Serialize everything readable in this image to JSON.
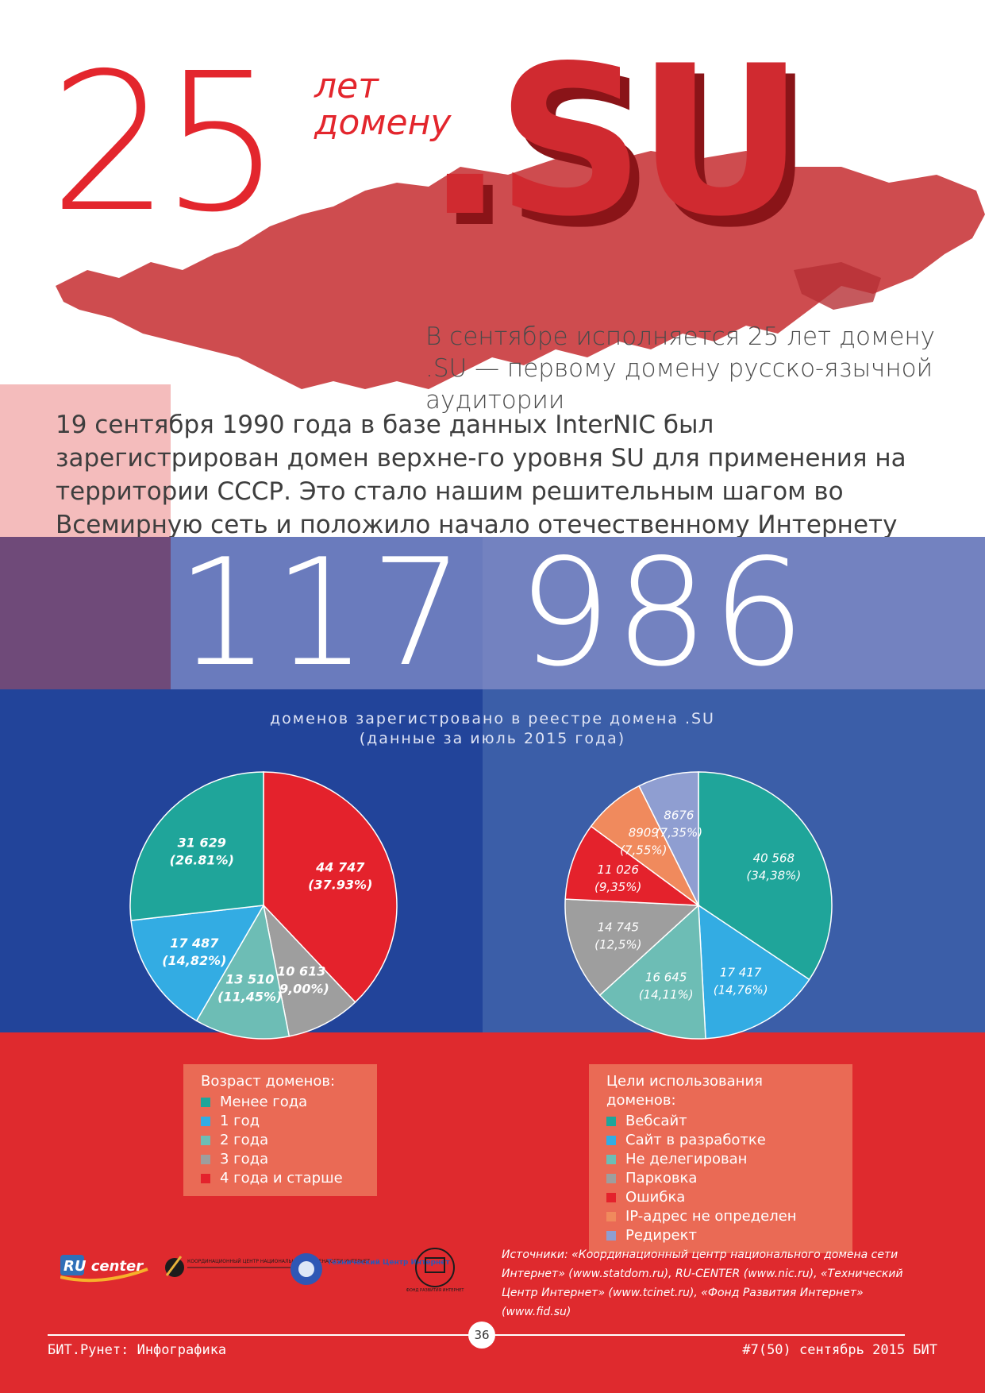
{
  "header": {
    "number": "25",
    "years_line1": "лет",
    "years_line2": "домену",
    "su_text": ".SU",
    "intro": "В сентябре исполняется 25 лет домену .SU — первому домену русско-язычной аудитории"
  },
  "paragraph": "19 сентября 1990 года в базе данных InterNIC был зарегистрирован домен верхне-го уровня SU для применения на территории СССР. Это стало нашим решительным шагом во Всемирную сеть и положило начало отечественному Интернету",
  "stat": {
    "number": "117 986",
    "caption_line1": "доменов зарегистровано в реестре домена .SU",
    "caption_line2": "(данные за июль 2015 года)"
  },
  "colors": {
    "red": "#e3262d",
    "teal": "#1fa59a",
    "light_blue": "#33ace3",
    "mint": "#6dbdb5",
    "gray": "#9e9e9e",
    "crimson": "#e4222c",
    "orange": "#f08a5d",
    "lavender": "#8f9ed1"
  },
  "chart_data": [
    {
      "type": "pie",
      "title": "Возраст доменов:",
      "slices": [
        {
          "name": "Менее года",
          "value": 31629,
          "label": "31 629",
          "pct": "(26.81%)",
          "color": "#1fa59a"
        },
        {
          "name": "1 год",
          "value": 17487,
          "label": "17 487",
          "pct": "(14,82%)",
          "color": "#33ace3"
        },
        {
          "name": "2 года",
          "value": 13510,
          "label": "13 510",
          "pct": "(11,45%)",
          "color": "#6dbdb5"
        },
        {
          "name": "3 года",
          "value": 10613,
          "label": "10 613",
          "pct": "(9,00%)",
          "color": "#9e9e9e"
        },
        {
          "name": "4 года и старше",
          "value": 44747,
          "label": "44 747",
          "pct": "(37.93%)",
          "color": "#e4222c"
        }
      ]
    },
    {
      "type": "pie",
      "title": "Цели использования доменов:",
      "slices": [
        {
          "name": "Вебсайт",
          "value": 40568,
          "label": "40 568",
          "pct": "(34,38%)",
          "color": "#1fa59a"
        },
        {
          "name": "Сайт в разработке",
          "value": 17417,
          "label": "17 417",
          "pct": "(14,76%)",
          "color": "#33ace3"
        },
        {
          "name": "Не делегирован",
          "value": 16645,
          "label": "16 645",
          "pct": "(14,11%)",
          "color": "#6dbdb5"
        },
        {
          "name": "Парковка",
          "value": 14745,
          "label": "14 745",
          "pct": "(12,5%)",
          "color": "#9e9e9e"
        },
        {
          "name": "Ошибка",
          "value": 11026,
          "label": "11 026",
          "pct": "(9,35%)",
          "color": "#e4222c"
        },
        {
          "name": "IP-адрес не определен",
          "value": 8909,
          "label": "8909",
          "pct": "(7,55%)",
          "color": "#f08a5d"
        },
        {
          "name": "Редирект",
          "value": 8676,
          "label": "8676",
          "pct": "(7,35%)",
          "color": "#8f9ed1"
        }
      ]
    }
  ],
  "legend1": {
    "title": "Возраст доменов:",
    "items": [
      "Менее года",
      "1 год",
      "2 года",
      "3 года",
      "4 года и старше"
    ]
  },
  "legend2": {
    "title": "Цели использования доменов:",
    "items": [
      "Вебсайт",
      "Сайт в разработке",
      "Не делегирован",
      "Парковка",
      "Ошибка",
      "IP-адрес не определен",
      "Редирект"
    ]
  },
  "logos": {
    "ru_center": "RU center",
    "coord_center": "КООРДИНАЦИОННЫЙ ЦЕНТР НАЦИОНАЛЬНОГО ДОМЕНА СЕТИ ИНТЕРНЕТ",
    "tci": "Технический Центр Интернет",
    "fund": "ФОНД РАЗВИТИЯ ИНТЕРНЕТ"
  },
  "sources": "Источники: «Координационный центр национального домена сети Интернет» (www.statdom.ru), RU-CENTER (www.nic.ru), «Технический Центр Интернет» (www.tcinet.ru), «Фонд Развития Интернет» (www.fid.su)",
  "footer": {
    "left": "БИТ.Рунет: Инфографика",
    "page": "36",
    "right": "#7(50) сентябрь 2015 БИТ"
  }
}
